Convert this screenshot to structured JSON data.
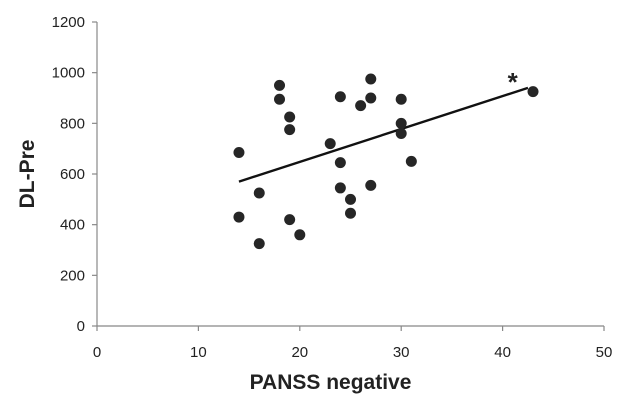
{
  "chart_data": {
    "type": "scatter",
    "title": "",
    "xlabel": "PANSS negative",
    "ylabel": "DL-Pre",
    "xlim": [
      0,
      50
    ],
    "ylim": [
      0,
      1200
    ],
    "xticks": [
      "0",
      "10",
      "20",
      "30",
      "40",
      "50"
    ],
    "yticks": [
      "0",
      "200",
      "400",
      "600",
      "800",
      "1000",
      "1200"
    ],
    "grid": false,
    "legend": "none",
    "points": [
      {
        "x": 14,
        "y": 685
      },
      {
        "x": 14,
        "y": 430
      },
      {
        "x": 16,
        "y": 525
      },
      {
        "x": 16,
        "y": 325
      },
      {
        "x": 18,
        "y": 950
      },
      {
        "x": 18,
        "y": 895
      },
      {
        "x": 19,
        "y": 825
      },
      {
        "x": 19,
        "y": 775
      },
      {
        "x": 19,
        "y": 420
      },
      {
        "x": 20,
        "y": 360
      },
      {
        "x": 23,
        "y": 720
      },
      {
        "x": 24,
        "y": 905
      },
      {
        "x": 24,
        "y": 645
      },
      {
        "x": 24,
        "y": 545
      },
      {
        "x": 25,
        "y": 500
      },
      {
        "x": 25,
        "y": 445
      },
      {
        "x": 26,
        "y": 870
      },
      {
        "x": 27,
        "y": 975
      },
      {
        "x": 27,
        "y": 900
      },
      {
        "x": 27,
        "y": 555
      },
      {
        "x": 30,
        "y": 895
      },
      {
        "x": 30,
        "y": 800
      },
      {
        "x": 30,
        "y": 760
      },
      {
        "x": 31,
        "y": 650
      },
      {
        "x": 43,
        "y": 925
      }
    ],
    "trendline": {
      "x": [
        14,
        42.5
      ],
      "y": [
        570,
        940
      ]
    },
    "annotations": [
      {
        "text": "*",
        "x": 41,
        "y": 975
      }
    ],
    "colors": {
      "points": "#262626",
      "trendline": "#111111",
      "axis": "#888888"
    }
  }
}
